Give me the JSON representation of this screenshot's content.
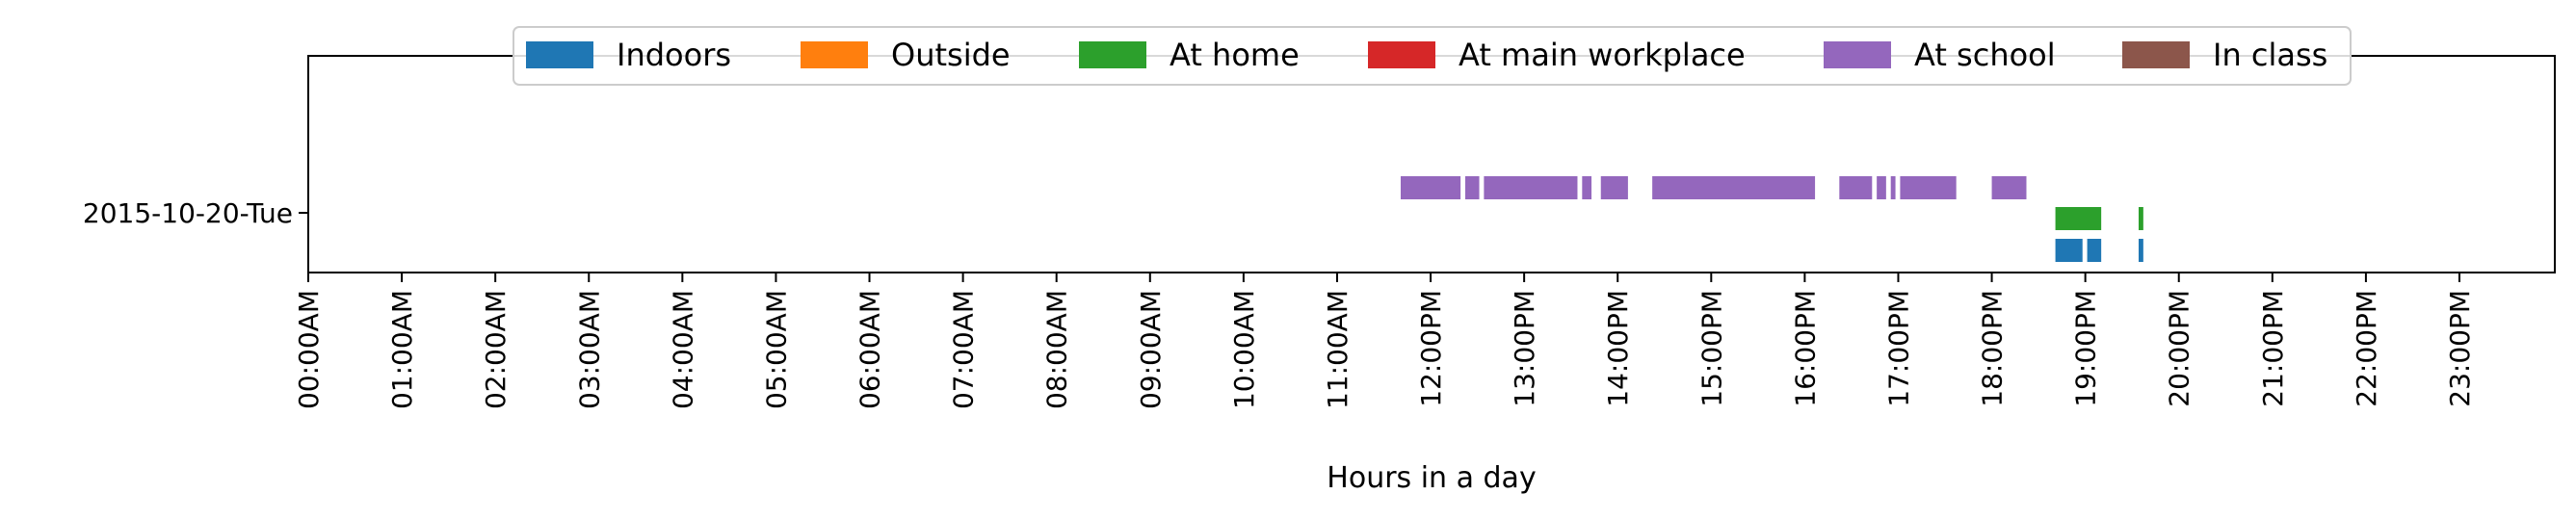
{
  "chart_data": {
    "type": "timeline",
    "xlabel": "Hours in a day",
    "xlim": [
      0,
      24
    ],
    "x_ticks": [
      "00:00AM",
      "01:00AM",
      "02:00AM",
      "03:00AM",
      "04:00AM",
      "05:00AM",
      "06:00AM",
      "07:00AM",
      "08:00AM",
      "09:00AM",
      "10:00AM",
      "11:00AM",
      "12:00PM",
      "13:00PM",
      "14:00PM",
      "15:00PM",
      "16:00PM",
      "17:00PM",
      "18:00PM",
      "19:00PM",
      "20:00PM",
      "21:00PM",
      "22:00PM",
      "23:00PM"
    ],
    "y_labels": [
      "2015-10-20-Tue"
    ],
    "legend": {
      "placement": "top-center",
      "entries": [
        {
          "name": "Indoors",
          "color": "#1f77b4"
        },
        {
          "name": "Outside",
          "color": "#ff7f0e"
        },
        {
          "name": "At home",
          "color": "#2ca02c"
        },
        {
          "name": "At main workplace",
          "color": "#d62728"
        },
        {
          "name": "At school",
          "color": "#9467bd"
        },
        {
          "name": "In class",
          "color": "#8c564b"
        }
      ]
    },
    "series": [
      {
        "name": "At school",
        "color": "#9467bd",
        "lane": 0,
        "intervals": [
          [
            11.68,
            12.32
          ],
          [
            12.37,
            12.52
          ],
          [
            12.57,
            13.57
          ],
          [
            13.62,
            13.72
          ],
          [
            13.82,
            14.11
          ],
          [
            14.37,
            16.11
          ],
          [
            16.37,
            16.72
          ],
          [
            16.77,
            16.87
          ],
          [
            16.92,
            16.97
          ],
          [
            17.02,
            17.62
          ],
          [
            18.0,
            18.37
          ]
        ]
      },
      {
        "name": "At home",
        "color": "#2ca02c",
        "lane": 1,
        "intervals": [
          [
            18.68,
            19.17
          ],
          [
            19.57,
            19.62
          ]
        ]
      },
      {
        "name": "Indoors",
        "color": "#1f77b4",
        "lane": 2,
        "intervals": [
          [
            18.68,
            18.97
          ],
          [
            19.02,
            19.17
          ],
          [
            19.57,
            19.62
          ]
        ]
      }
    ]
  }
}
